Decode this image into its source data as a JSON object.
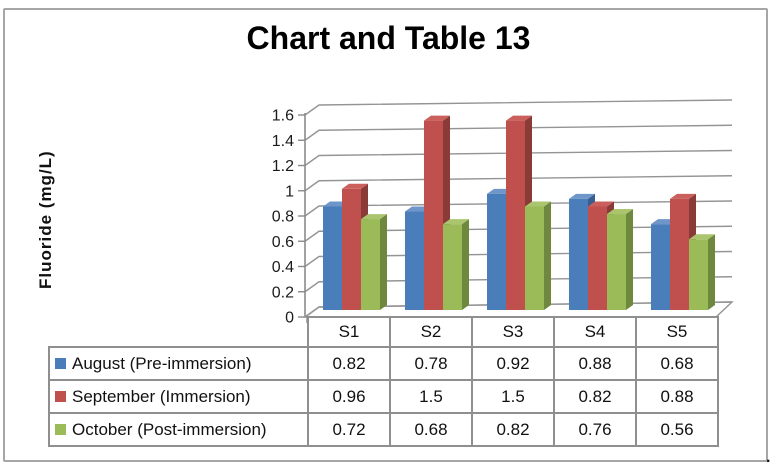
{
  "figure": {
    "trailing_period": "."
  },
  "chart_data": {
    "type": "bar",
    "variant": "3d-clustered-column",
    "title": "Chart and Table 13",
    "xlabel": "",
    "ylabel": "Fluoride (mg/L)",
    "categories": [
      "S1",
      "S2",
      "S3",
      "S4",
      "S5"
    ],
    "series": [
      {
        "name": "August (Pre-immersion)",
        "values": [
          0.82,
          0.78,
          0.92,
          0.88,
          0.68
        ],
        "color": "#4a7ebb",
        "side_color": "#375e8e",
        "top_color": "#6e96c8"
      },
      {
        "name": "September (Immersion)",
        "values": [
          0.96,
          1.5,
          1.5,
          0.82,
          0.88
        ],
        "color": "#c0504d",
        "side_color": "#8a3a37",
        "top_color": "#ca5f5b"
      },
      {
        "name": "October (Post-immersion)",
        "values": [
          0.72,
          0.68,
          0.82,
          0.76,
          0.56
        ],
        "color": "#9bbb59",
        "side_color": "#6e883e",
        "top_color": "#aac56d"
      }
    ],
    "ylim": [
      0,
      1.6
    ],
    "ytick_step": 0.2,
    "ytick_labels": [
      "0",
      "0.2",
      "0.4",
      "0.6",
      "0.8",
      "1",
      "1.2",
      "1.4",
      "1.6"
    ],
    "grid": true,
    "legend_position": "table-left-column"
  },
  "colors": {
    "grid": "#949494",
    "axis": "#8a8a8a",
    "table_border": "#8f8f8f",
    "tick_text": "#1c1c1c",
    "figure_border": "#a6a6a6"
  }
}
